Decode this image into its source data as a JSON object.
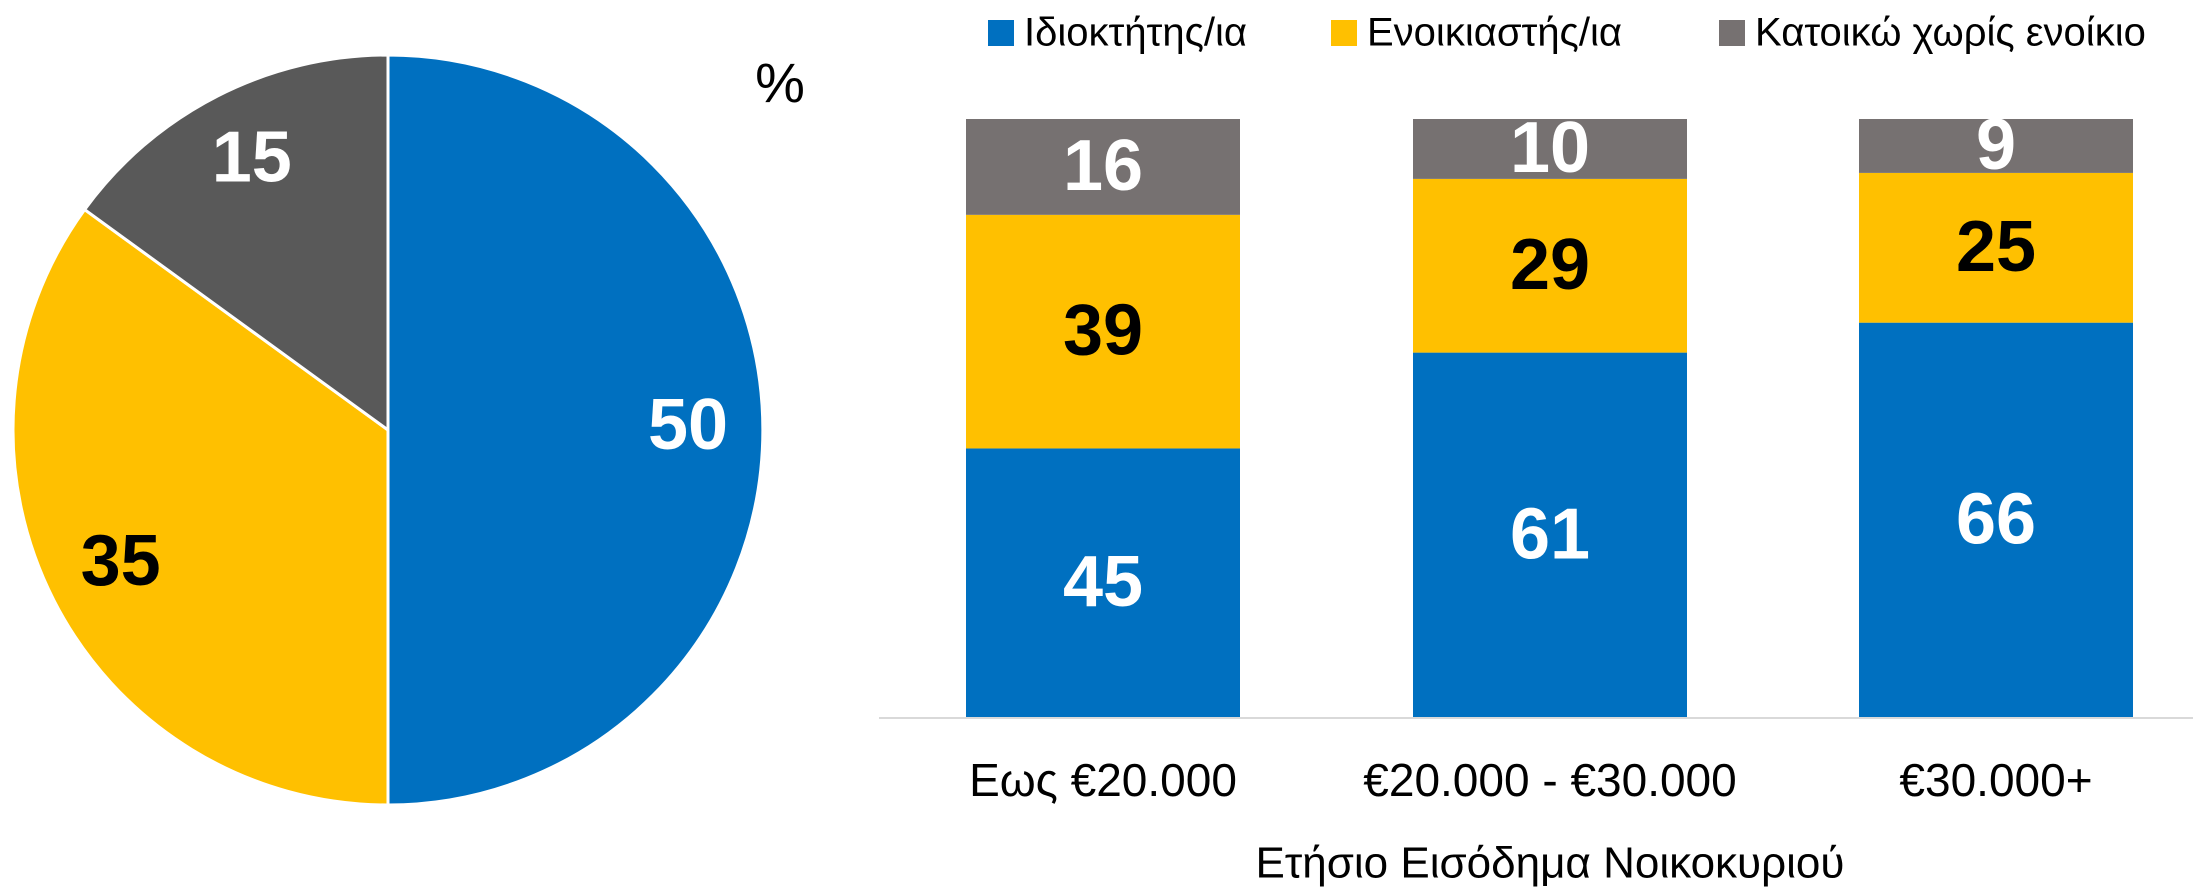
{
  "chart_data": [
    {
      "type": "pie",
      "annotation": "%",
      "categories": [
        "Ιδιοκτήτης/ια",
        "Ενοικιαστής/ια",
        "Κατοικώ χωρίς ενοίκιο"
      ],
      "values": [
        50,
        35,
        15
      ],
      "colors": [
        "#0070c0",
        "#ffc000",
        "#595959"
      ],
      "label_colors": [
        "#ffffff",
        "#000000",
        "#ffffff"
      ]
    },
    {
      "type": "bar",
      "stacked": true,
      "x_label": "Ετήσιο Εισόδημα Νοικοκυριού",
      "categories": [
        "Εως €20.000",
        "€20.000 - €30.000",
        "€30.000+"
      ],
      "series": [
        {
          "name": "Ιδιοκτήτης/ια",
          "color": "#0070c0",
          "label_color": "#ffffff",
          "values": [
            45,
            61,
            66
          ]
        },
        {
          "name": "Ενοικιαστής/ια",
          "color": "#ffc000",
          "label_color": "#000000",
          "values": [
            39,
            29,
            25
          ]
        },
        {
          "name": "Κατοικώ χωρίς ενοίκιο",
          "color": "#767171",
          "label_color": "#ffffff",
          "values": [
            16,
            10,
            9
          ]
        }
      ],
      "ylim": [
        0,
        100
      ],
      "legend": "top"
    }
  ]
}
